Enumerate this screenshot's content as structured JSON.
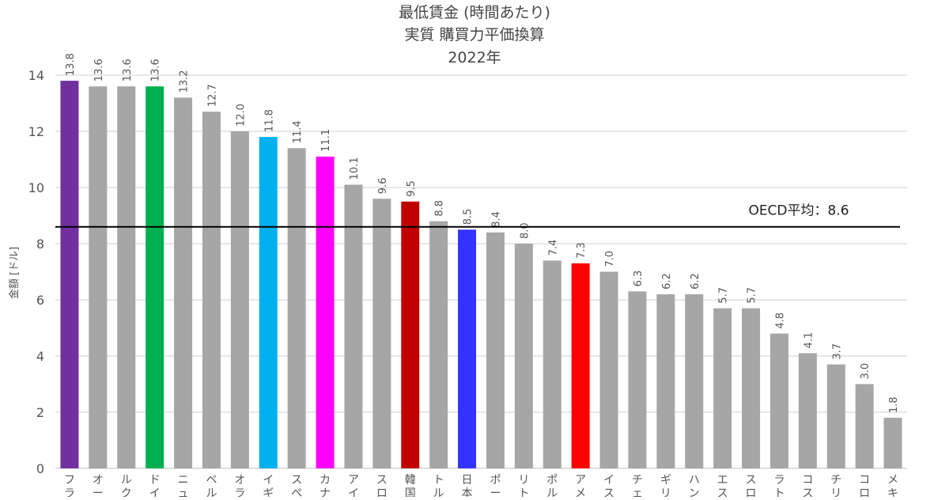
{
  "chart_data": {
    "type": "bar",
    "title_lines": [
      "最低賃金 (時間あたり)",
      "実質 購買力平価換算",
      "2022年"
    ],
    "ylabel": "金額 [ドル]",
    "ylim": [
      0,
      14
    ],
    "y_ticks": [
      0,
      2,
      4,
      6,
      8,
      10,
      12,
      14
    ],
    "grid": true,
    "categories": [
      [
        "フ",
        "ラ"
      ],
      [
        "オ",
        "ー"
      ],
      [
        "ル",
        "ク"
      ],
      [
        "ド",
        "イ"
      ],
      [
        "ニ",
        "ュ"
      ],
      [
        "ベ",
        "ル"
      ],
      [
        "オ",
        "ラ"
      ],
      [
        "イ",
        "ギ"
      ],
      [
        "ス",
        "ペ"
      ],
      [
        "カ",
        "ナ"
      ],
      [
        "ア",
        "イ"
      ],
      [
        "ス",
        "ロ"
      ],
      [
        "韓",
        "国"
      ],
      [
        "ト",
        "ル"
      ],
      [
        "日",
        "本"
      ],
      [
        "ポ",
        "ー"
      ],
      [
        "リ",
        "ト"
      ],
      [
        "ポ",
        "ル"
      ],
      [
        "ア",
        "メ"
      ],
      [
        "イ",
        "ス"
      ],
      [
        "チ",
        "ェ"
      ],
      [
        "ギ",
        "リ"
      ],
      [
        "ハ",
        "ン"
      ],
      [
        "エ",
        "ス"
      ],
      [
        "ス",
        "ロ"
      ],
      [
        "ラ",
        "ト"
      ],
      [
        "コ",
        "ス"
      ],
      [
        "チ",
        "リ"
      ],
      [
        "コ",
        "ロ"
      ],
      [
        "メ",
        "キ"
      ]
    ],
    "values": [
      13.8,
      13.6,
      13.6,
      13.6,
      13.2,
      12.7,
      12.0,
      11.8,
      11.4,
      11.1,
      10.1,
      9.6,
      9.5,
      8.8,
      8.5,
      8.4,
      8.0,
      7.4,
      7.3,
      7.0,
      6.3,
      6.2,
      6.2,
      5.7,
      5.7,
      4.8,
      4.1,
      3.7,
      3.0,
      1.8
    ],
    "value_labels": [
      "13.8",
      "13.6",
      "13.6",
      "13.6",
      "13.2",
      "12.7",
      "12.0",
      "11.8",
      "11.4",
      "11.1",
      "10.1",
      "9.6",
      "9.5",
      "8.8",
      "8.5",
      "8.4",
      "8.0",
      "7.4",
      "7.3",
      "7.0",
      "6.3",
      "6.2",
      "6.2",
      "5.7",
      "5.7",
      "4.8",
      "4.1",
      "3.7",
      "3.0",
      "1.8"
    ],
    "colors": [
      "#7030a0",
      "#a6a6a6",
      "#a6a6a6",
      "#00b050",
      "#a6a6a6",
      "#a6a6a6",
      "#a6a6a6",
      "#00b0f0",
      "#a6a6a6",
      "#ff00ff",
      "#a6a6a6",
      "#a6a6a6",
      "#c00000",
      "#a6a6a6",
      "#3333ff",
      "#a6a6a6",
      "#a6a6a6",
      "#a6a6a6",
      "#ff0000",
      "#a6a6a6",
      "#a6a6a6",
      "#a6a6a6",
      "#a6a6a6",
      "#a6a6a6",
      "#a6a6a6",
      "#a6a6a6",
      "#a6a6a6",
      "#a6a6a6",
      "#a6a6a6",
      "#a6a6a6"
    ],
    "reference_line": {
      "value": 8.6,
      "label": "OECD平均：8.6",
      "color": "#000000"
    },
    "grid_color": "#d0d0d0",
    "text_color": "#555555",
    "title_color": "#444444"
  }
}
